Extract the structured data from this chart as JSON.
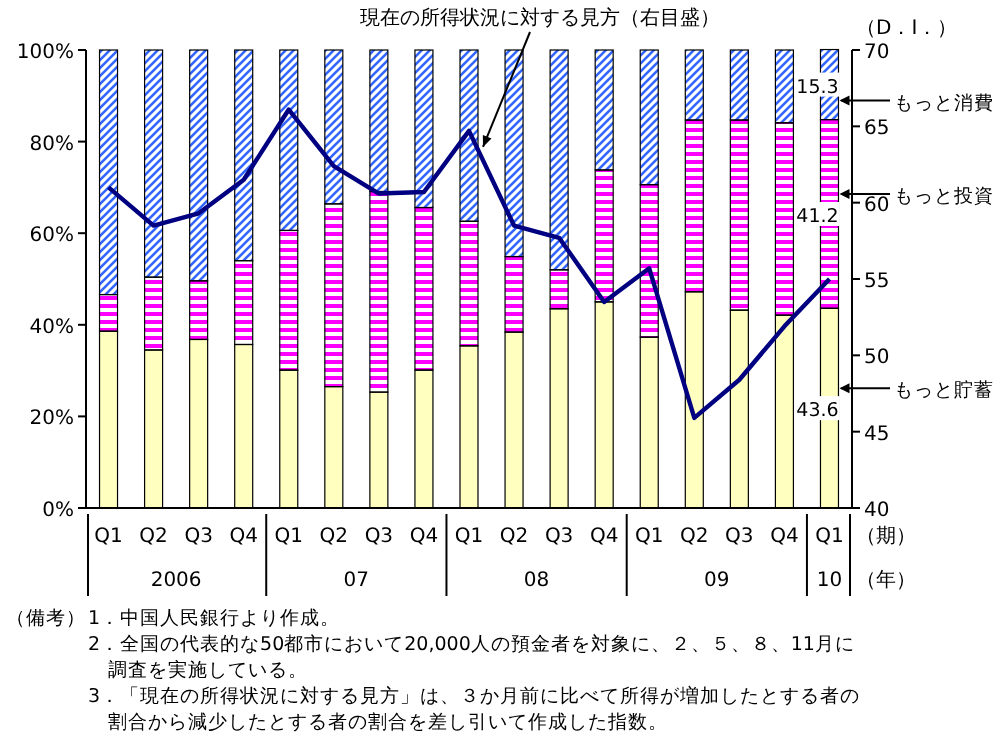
{
  "chart_data": {
    "type": "bar",
    "stacked": true,
    "categories": [
      "Q1",
      "Q2",
      "Q3",
      "Q4",
      "Q1",
      "Q2",
      "Q3",
      "Q4",
      "Q1",
      "Q2",
      "Q3",
      "Q4",
      "Q1",
      "Q2",
      "Q3",
      "Q4",
      "Q1"
    ],
    "series": [
      {
        "name": "もっと貯蓄",
        "color": "#ffffc0",
        "values": [
          38.6,
          34.5,
          36.8,
          35.7,
          30.1,
          26.5,
          25.3,
          30.1,
          35.4,
          38.4,
          43.5,
          45.0,
          37.3,
          47.2,
          43.2,
          42.1,
          43.6
        ],
        "value_labels": [
          null,
          null,
          null,
          null,
          null,
          null,
          null,
          null,
          null,
          null,
          null,
          null,
          null,
          null,
          null,
          null,
          "43.6"
        ]
      },
      {
        "name": "もっと投資",
        "color": "#ff00ff",
        "values": [
          8.0,
          15.9,
          12.8,
          18.3,
          30.5,
          39.9,
          43.8,
          35.5,
          27.2,
          16.5,
          8.5,
          28.8,
          33.3,
          37.5,
          41.5,
          42.0,
          41.2
        ],
        "value_labels": [
          null,
          null,
          null,
          null,
          null,
          null,
          null,
          null,
          null,
          null,
          null,
          null,
          null,
          null,
          null,
          null,
          "41.2"
        ]
      },
      {
        "name": "もっと消費",
        "color": "#3366ff",
        "values": [
          53.4,
          49.6,
          50.4,
          46.0,
          39.4,
          33.6,
          30.9,
          34.4,
          37.4,
          45.1,
          48.0,
          26.2,
          29.4,
          15.3,
          15.3,
          15.9,
          15.3
        ],
        "value_labels": [
          null,
          null,
          null,
          null,
          null,
          null,
          null,
          null,
          null,
          null,
          null,
          null,
          null,
          null,
          null,
          null,
          "15.3"
        ]
      },
      {
        "name": "現在の所得状況に対する見方（右目盛）",
        "type": "line",
        "axis": "y2",
        "color": "#000080",
        "values": [
          61.0,
          58.5,
          59.3,
          61.5,
          66.1,
          62.4,
          60.6,
          60.7,
          64.7,
          58.5,
          57.7,
          53.5,
          55.7,
          45.9,
          48.4,
          51.9,
          55.0
        ]
      }
    ],
    "ylim": [
      0,
      100
    ],
    "yticks": [
      {
        "value": 0,
        "label": "0%"
      },
      {
        "value": 20,
        "label": "20%"
      },
      {
        "value": 40,
        "label": "40%"
      },
      {
        "value": 60,
        "label": "60%"
      },
      {
        "value": 80,
        "label": "80%"
      },
      {
        "value": 100,
        "label": "100%"
      }
    ],
    "y2lim": [
      40,
      70
    ],
    "y2ticks": [
      40,
      45,
      50,
      55,
      60,
      65,
      70
    ],
    "y2label": "（D．I．）",
    "xlabel": "（期）",
    "annotations": [
      "2006",
      "07",
      "08",
      "09",
      "10",
      "（年）",
      "（備考）",
      "1．中国人民銀行より作成。",
      "2．全国の代表的な50都市において20,000人の預金者を対象に、２、５、８、11月に",
      "　調査を実施している。",
      "3．「現在の所得状況に対する見方」は、３か月前に比べて所得が増加したとする者の",
      "　割合から減少したとする者の割合を差し引いて作成した指数。"
    ],
    "grid": false,
    "marker": "none",
    "line_style": "solid"
  }
}
